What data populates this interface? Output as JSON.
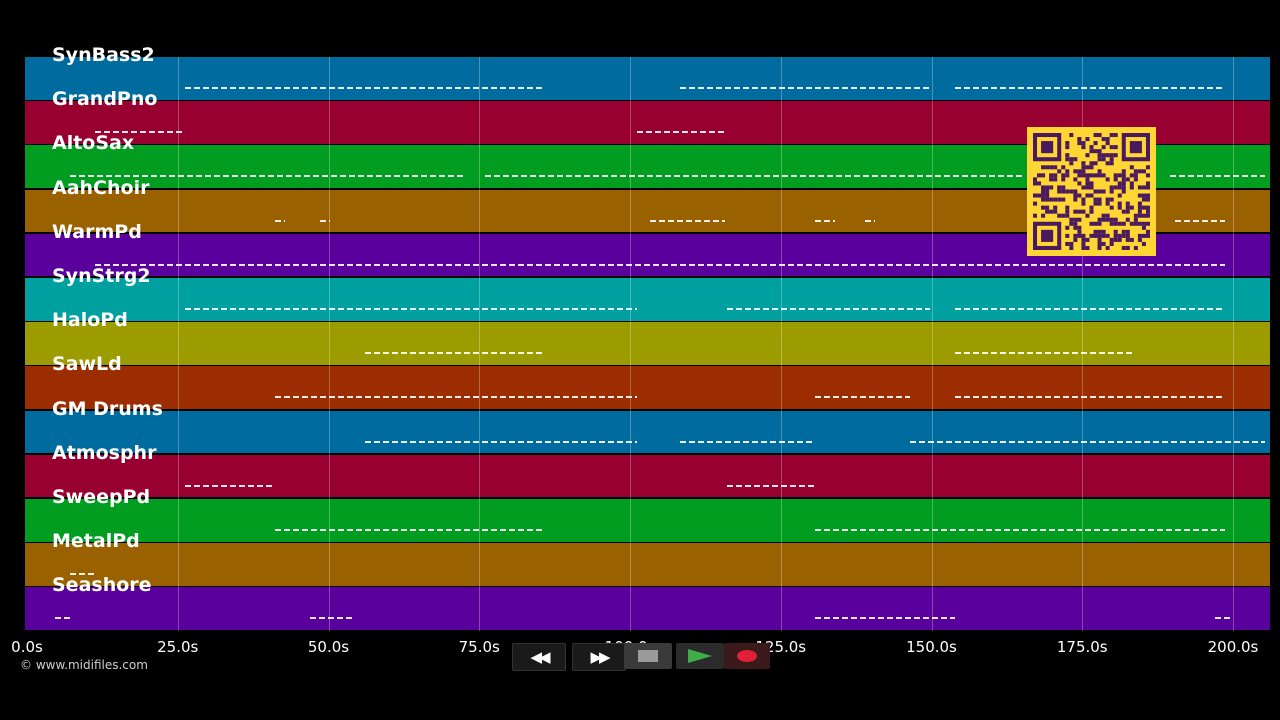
{
  "tracks": [
    {
      "name": "SynBass2",
      "color": "#006b9f"
    },
    {
      "name": "GrandPno",
      "color": "#970030"
    },
    {
      "name": "AltoSax",
      "color": "#009d20"
    },
    {
      "name": "AahChoir",
      "color": "#996100"
    },
    {
      "name": "WarmPd",
      "color": "#5a009c"
    },
    {
      "name": "SynStrg2",
      "color": "#00a0a0"
    },
    {
      "name": "HaloPd",
      "color": "#9c9c00"
    },
    {
      "name": "SawLd",
      "color": "#9c2d00"
    },
    {
      "name": "GM Drums",
      "color": "#006b9f"
    },
    {
      "name": "Atmosphr",
      "color": "#970030"
    },
    {
      "name": "SweepPd",
      "color": "#009d20"
    },
    {
      "name": "MetalPd",
      "color": "#996100"
    },
    {
      "name": "Seashore",
      "color": "#5a009c"
    }
  ],
  "timeline": {
    "ticks": [
      "0.0s",
      "25.0s",
      "50.0s",
      "75.0s",
      "100.0s",
      "125.0s",
      "150.0s",
      "175.0s",
      "200.0s"
    ],
    "tick_seconds": [
      0,
      25,
      50,
      75,
      100,
      125,
      150,
      175,
      200
    ]
  },
  "copyright": "© www.midifiles.com",
  "controls": {
    "rewind_icon": "rewind-icon",
    "fastforward_icon": "fast-forward-icon",
    "stop_icon": "stop-icon",
    "play_icon": "play-icon",
    "record_icon": "record-icon",
    "play_color": "#3fae49",
    "record_color": "#e2203a"
  },
  "qr_icon": "qr-code-icon"
}
